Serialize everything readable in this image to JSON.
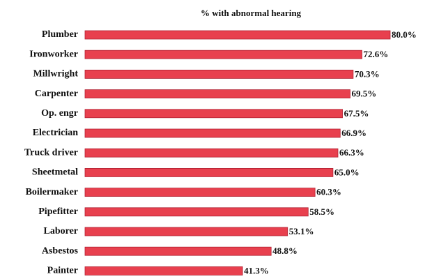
{
  "chart_data": {
    "type": "bar",
    "orientation": "horizontal",
    "title": "% with abnormal hearing",
    "categories": [
      "Plumber",
      "Ironworker",
      "Millwright",
      "Carpenter",
      "Op. engr",
      "Electrician",
      "Truck driver",
      "Sheetmetal",
      "Boilermaker",
      "Pipefitter",
      "Laborer",
      "Asbestos",
      "Painter"
    ],
    "values": [
      80.0,
      72.6,
      70.3,
      69.5,
      67.5,
      66.9,
      66.3,
      65.0,
      60.3,
      58.5,
      53.1,
      48.8,
      41.3
    ],
    "value_labels": [
      "80.0%",
      "72.6%",
      "70.3%",
      "69.5%",
      "67.5%",
      "66.9%",
      "66.3%",
      "65.0%",
      "60.3%",
      "58.5%",
      "53.1%",
      "48.8%",
      "41.3%"
    ],
    "color": "#e8404e"
  }
}
